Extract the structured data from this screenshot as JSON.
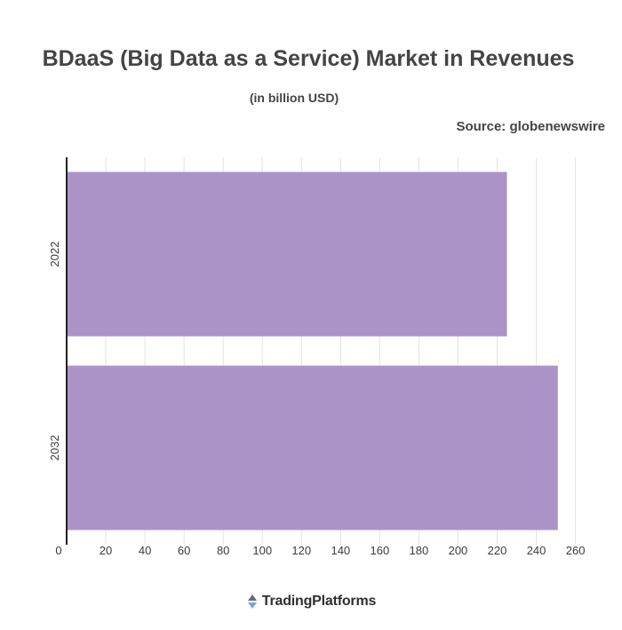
{
  "title": "BDaaS (Big Data as a Service) Market in Revenues",
  "subtitle": "(in billion USD)",
  "source": "Source: globenewswire",
  "brand": "TradingPlatforms",
  "colors": {
    "bar": "#ab93c8",
    "axis": "#222222",
    "grid": "#e3e3e3",
    "logo_top": "#5f6b86",
    "logo_bottom": "#7aa3dd"
  },
  "chart_data": {
    "type": "bar",
    "orientation": "horizontal",
    "categories": [
      "2022",
      "2032"
    ],
    "values": [
      225,
      251
    ],
    "title": "BDaaS (Big Data as a Service) Market in Revenues",
    "subtitle": "(in billion USD)",
    "xlim": [
      0,
      262
    ],
    "xticks": [
      0,
      20,
      40,
      60,
      80,
      100,
      120,
      140,
      160,
      180,
      200,
      220,
      240,
      260
    ],
    "grid": true
  }
}
